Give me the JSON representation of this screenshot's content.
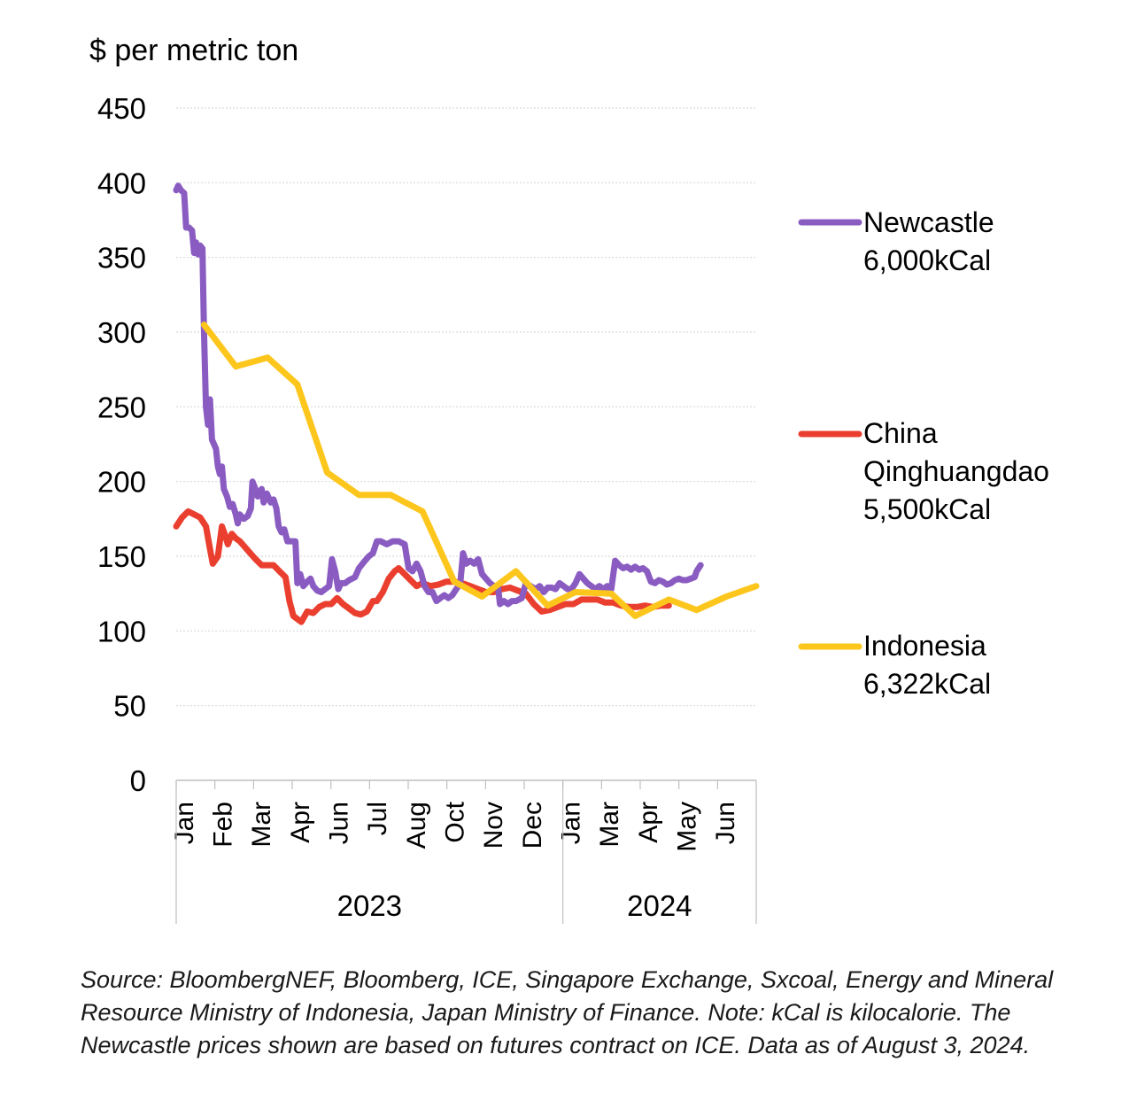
{
  "chart_data": {
    "type": "line",
    "ylabel": "$ per metric ton",
    "ylim": [
      0,
      450
    ],
    "yticks": [
      0,
      50,
      100,
      150,
      200,
      250,
      300,
      350,
      400,
      450
    ],
    "grid": true,
    "legend_position": "right",
    "xlim": [
      0,
      19
    ],
    "month_ticks": [
      {
        "label": "Jan",
        "x": 0
      },
      {
        "label": "Feb",
        "x": 1
      },
      {
        "label": "Mar",
        "x": 2
      },
      {
        "label": "Apr",
        "x": 3
      },
      {
        "label": "Jun",
        "x": 4
      },
      {
        "label": "Jul",
        "x": 5
      },
      {
        "label": "Aug",
        "x": 6
      },
      {
        "label": "Oct",
        "x": 7
      },
      {
        "label": "Nov",
        "x": 8
      },
      {
        "label": "Dec",
        "x": 9
      },
      {
        "label": "Jan",
        "x": 10
      },
      {
        "label": "Mar",
        "x": 11
      },
      {
        "label": "Apr",
        "x": 12
      },
      {
        "label": "May",
        "x": 13
      },
      {
        "label": "Jun",
        "x": 14
      }
    ],
    "year_groups": [
      {
        "label": "2023",
        "from": 0,
        "to": 10
      },
      {
        "label": "2024",
        "from": 10,
        "to": 15
      }
    ],
    "series": [
      {
        "name": "Newcastle 6,000kCal",
        "color": "#8a5cc2",
        "points": [
          [
            0,
            395
          ],
          [
            0.05,
            398
          ],
          [
            0.12,
            395
          ],
          [
            0.2,
            393
          ],
          [
            0.25,
            370
          ],
          [
            0.32,
            370
          ],
          [
            0.4,
            368
          ],
          [
            0.45,
            353
          ],
          [
            0.5,
            360
          ],
          [
            0.55,
            352
          ],
          [
            0.6,
            358
          ],
          [
            0.66,
            356
          ],
          [
            0.7,
            300
          ],
          [
            0.75,
            250
          ],
          [
            0.8,
            238
          ],
          [
            0.85,
            255
          ],
          [
            0.9,
            228
          ],
          [
            1.0,
            222
          ],
          [
            1.05,
            210
          ],
          [
            1.1,
            205
          ],
          [
            1.15,
            210
          ],
          [
            1.2,
            195
          ],
          [
            1.28,
            190
          ],
          [
            1.35,
            183
          ],
          [
            1.42,
            185
          ],
          [
            1.5,
            178
          ],
          [
            1.55,
            172
          ],
          [
            1.6,
            178
          ],
          [
            1.7,
            175
          ],
          [
            1.8,
            177
          ],
          [
            1.88,
            182
          ],
          [
            1.92,
            200
          ],
          [
            1.98,
            196
          ],
          [
            2.05,
            190
          ],
          [
            2.15,
            195
          ],
          [
            2.2,
            186
          ],
          [
            2.28,
            192
          ],
          [
            2.38,
            186
          ],
          [
            2.45,
            188
          ],
          [
            2.52,
            182
          ],
          [
            2.58,
            170
          ],
          [
            2.65,
            166
          ],
          [
            2.72,
            168
          ],
          [
            2.8,
            160
          ],
          [
            2.9,
            160
          ],
          [
            3.0,
            160
          ],
          [
            3.05,
            132
          ],
          [
            3.12,
            138
          ],
          [
            3.2,
            130
          ],
          [
            3.3,
            133
          ],
          [
            3.38,
            135
          ],
          [
            3.45,
            130
          ],
          [
            3.55,
            127
          ],
          [
            3.65,
            126
          ],
          [
            3.75,
            128
          ],
          [
            3.85,
            130
          ],
          [
            3.92,
            148
          ],
          [
            4.0,
            140
          ],
          [
            4.08,
            128
          ],
          [
            4.15,
            132
          ],
          [
            4.25,
            132
          ],
          [
            4.35,
            134
          ],
          [
            4.5,
            136
          ],
          [
            4.6,
            142
          ],
          [
            4.72,
            146
          ],
          [
            4.85,
            150
          ],
          [
            4.95,
            152
          ],
          [
            5.05,
            160
          ],
          [
            5.15,
            160
          ],
          [
            5.3,
            158
          ],
          [
            5.45,
            160
          ],
          [
            5.6,
            160
          ],
          [
            5.75,
            158
          ],
          [
            5.85,
            142
          ],
          [
            5.95,
            140
          ],
          [
            6.05,
            145
          ],
          [
            6.15,
            140
          ],
          [
            6.25,
            130
          ],
          [
            6.35,
            126
          ],
          [
            6.45,
            126
          ],
          [
            6.55,
            120
          ],
          [
            6.65,
            122
          ],
          [
            6.75,
            124
          ],
          [
            6.85,
            122
          ],
          [
            6.95,
            124
          ],
          [
            7.05,
            128
          ],
          [
            7.15,
            132
          ],
          [
            7.22,
            152
          ],
          [
            7.3,
            145
          ],
          [
            7.4,
            147
          ],
          [
            7.5,
            145
          ],
          [
            7.6,
            148
          ],
          [
            7.7,
            138
          ],
          [
            7.8,
            135
          ],
          [
            7.9,
            132
          ],
          [
            8.0,
            130
          ],
          [
            8.1,
            130
          ],
          [
            8.15,
            118
          ],
          [
            8.25,
            120
          ],
          [
            8.35,
            118
          ],
          [
            8.45,
            120
          ],
          [
            8.55,
            120
          ],
          [
            8.7,
            122
          ],
          [
            8.8,
            132
          ],
          [
            8.92,
            130
          ],
          [
            9.05,
            128
          ],
          [
            9.15,
            130
          ],
          [
            9.25,
            126
          ],
          [
            9.35,
            129
          ],
          [
            9.45,
            129
          ],
          [
            9.55,
            128
          ],
          [
            9.65,
            132
          ],
          [
            9.75,
            130
          ],
          [
            9.85,
            128
          ],
          [
            9.95,
            128
          ],
          [
            10.05,
            132
          ],
          [
            10.15,
            138
          ],
          [
            10.25,
            135
          ],
          [
            10.35,
            132
          ],
          [
            10.45,
            130
          ],
          [
            10.55,
            128
          ],
          [
            10.65,
            130
          ],
          [
            10.75,
            128
          ],
          [
            10.85,
            130
          ],
          [
            10.95,
            128
          ],
          [
            11.05,
            147
          ],
          [
            11.15,
            144
          ],
          [
            11.25,
            142
          ],
          [
            11.35,
            143
          ],
          [
            11.45,
            141
          ],
          [
            11.55,
            143
          ],
          [
            11.65,
            141
          ],
          [
            11.75,
            142
          ],
          [
            11.85,
            140
          ],
          [
            11.95,
            133
          ],
          [
            12.05,
            132
          ],
          [
            12.15,
            134
          ],
          [
            12.25,
            133
          ],
          [
            12.35,
            131
          ],
          [
            12.45,
            132
          ],
          [
            12.55,
            134
          ],
          [
            12.65,
            135
          ],
          [
            12.75,
            134
          ],
          [
            12.85,
            134
          ],
          [
            12.95,
            135
          ],
          [
            13.05,
            136
          ],
          [
            13.1,
            140
          ],
          [
            13.2,
            144
          ]
        ]
      },
      {
        "name": "China Qinghuangdao 5,500kCal",
        "color": "#ea3f2f",
        "points": [
          [
            0,
            170
          ],
          [
            0.15,
            176
          ],
          [
            0.3,
            180
          ],
          [
            0.45,
            178
          ],
          [
            0.6,
            176
          ],
          [
            0.75,
            170
          ],
          [
            0.85,
            155
          ],
          [
            0.92,
            145
          ],
          [
            1.05,
            150
          ],
          [
            1.15,
            170
          ],
          [
            1.22,
            165
          ],
          [
            1.3,
            158
          ],
          [
            1.4,
            165
          ],
          [
            1.5,
            162
          ],
          [
            1.6,
            160
          ],
          [
            1.8,
            154
          ],
          [
            2.0,
            148
          ],
          [
            2.15,
            144
          ],
          [
            2.3,
            144
          ],
          [
            2.45,
            144
          ],
          [
            2.6,
            140
          ],
          [
            2.75,
            136
          ],
          [
            2.85,
            120
          ],
          [
            2.95,
            110
          ],
          [
            3.05,
            108
          ],
          [
            3.15,
            106
          ],
          [
            3.3,
            113
          ],
          [
            3.45,
            112
          ],
          [
            3.6,
            116
          ],
          [
            3.75,
            118
          ],
          [
            3.9,
            118
          ],
          [
            4.05,
            122
          ],
          [
            4.2,
            118
          ],
          [
            4.35,
            115
          ],
          [
            4.5,
            112
          ],
          [
            4.65,
            111
          ],
          [
            4.8,
            113
          ],
          [
            4.95,
            120
          ],
          [
            5.05,
            120
          ],
          [
            5.2,
            126
          ],
          [
            5.35,
            135
          ],
          [
            5.5,
            140
          ],
          [
            5.6,
            142
          ],
          [
            5.75,
            138
          ],
          [
            5.9,
            134
          ],
          [
            6.05,
            130
          ],
          [
            6.2,
            132
          ],
          [
            6.4,
            130
          ],
          [
            6.6,
            131
          ],
          [
            6.8,
            133
          ],
          [
            7.0,
            133
          ],
          [
            7.2,
            132
          ],
          [
            7.4,
            130
          ],
          [
            7.6,
            128
          ],
          [
            7.8,
            126
          ],
          [
            8.0,
            126
          ],
          [
            8.2,
            128
          ],
          [
            8.4,
            129
          ],
          [
            8.6,
            127
          ],
          [
            8.8,
            125
          ],
          [
            9.0,
            118
          ],
          [
            9.2,
            113
          ],
          [
            9.4,
            114
          ],
          [
            9.6,
            116
          ],
          [
            9.8,
            118
          ],
          [
            10.0,
            118
          ],
          [
            10.2,
            121
          ],
          [
            10.4,
            121
          ],
          [
            10.6,
            121
          ],
          [
            10.8,
            119
          ],
          [
            11.0,
            119
          ],
          [
            11.2,
            117
          ],
          [
            11.4,
            116
          ],
          [
            11.6,
            116
          ],
          [
            11.8,
            117
          ],
          [
            12.0,
            116
          ],
          [
            12.2,
            117
          ],
          [
            12.4,
            117
          ]
        ]
      },
      {
        "name": "Indonesia 6,322kCal",
        "color": "#fdc61d",
        "points": [
          [
            0.7,
            305
          ],
          [
            1.5,
            277
          ],
          [
            2.3,
            283
          ],
          [
            3.05,
            265
          ],
          [
            3.8,
            206
          ],
          [
            4.6,
            191
          ],
          [
            5.4,
            191
          ],
          [
            6.2,
            180
          ],
          [
            7.0,
            133
          ],
          [
            7.7,
            123
          ],
          [
            8.55,
            140
          ],
          [
            9.35,
            117
          ],
          [
            10.05,
            126
          ],
          [
            10.95,
            125
          ],
          [
            11.55,
            110
          ],
          [
            12.4,
            121
          ],
          [
            13.1,
            114
          ],
          [
            13.85,
            123
          ],
          [
            14.6,
            130
          ]
        ]
      }
    ]
  },
  "legend": {
    "newcastle": "Newcastle\n6,000kCal",
    "china": "China\nQinghuangdao\n5,500kCal",
    "indonesia": "Indonesia\n6,322kCal"
  },
  "source_note": "Source: BloombergNEF, Bloomberg, ICE, Singapore Exchange, Sxcoal, Energy and Mineral Resource Ministry of Indonesia, Japan Ministry of Finance. Note: kCal is kilocalorie. The Newcastle prices shown are based on futures contract on ICE. Data as of August 3, 2024."
}
